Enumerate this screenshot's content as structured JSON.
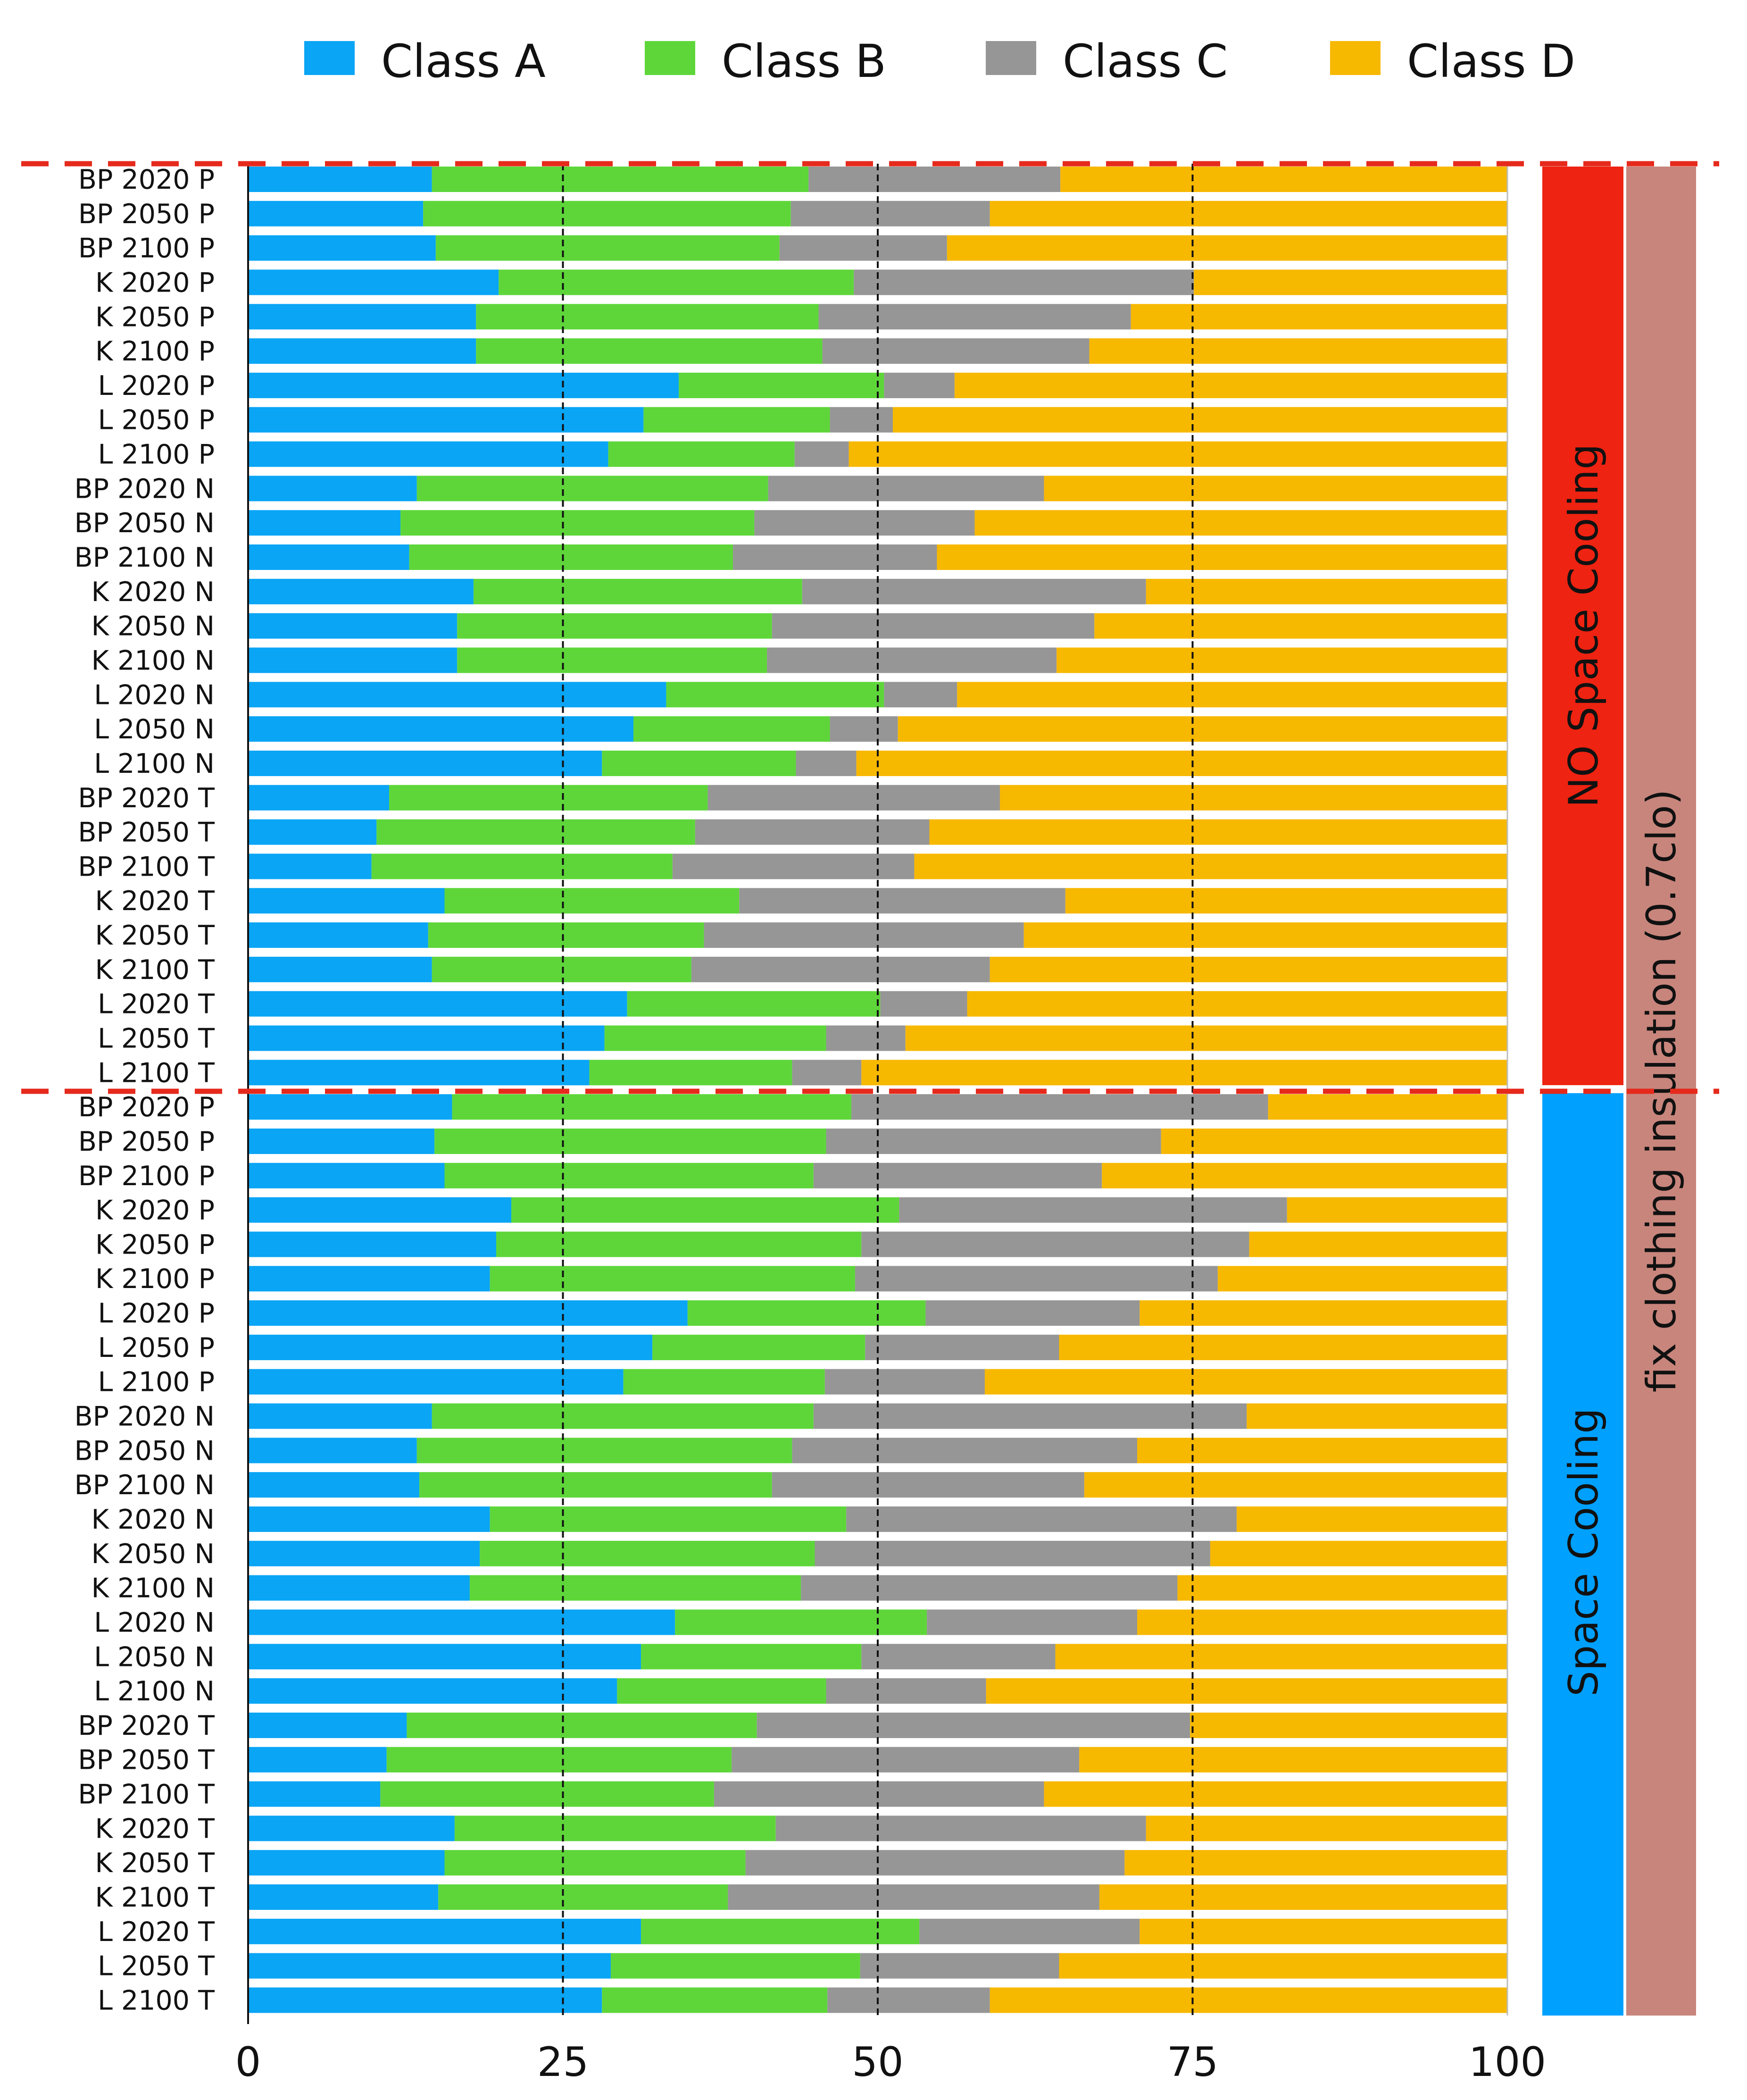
{
  "colors": {
    "class_a": "#0aa5f5",
    "class_b": "#5ed63a",
    "class_c": "#969696",
    "class_d": "#f7b800",
    "no_cooling_band": "#ee2311",
    "cooling_band": "#00a0ff",
    "clothing_band": "#c8857c",
    "dashed_line": "#e52a1c"
  },
  "group_labels": {
    "no_cooling": "NO Space Cooling",
    "cooling": "Space Cooling",
    "clothing": "fix clothing insulation (0.7clo)"
  },
  "chart_data": {
    "type": "bar",
    "orientation": "horizontal",
    "stacked": true,
    "title": "",
    "xlabel": "",
    "ylabel": "",
    "xlim": [
      0,
      100
    ],
    "xticks": [
      "0",
      "25",
      "50",
      "75",
      "100"
    ],
    "grid": "vertical dashed at 25, 50, 75",
    "legend": {
      "placement": "top",
      "entries": [
        "Class A",
        "Class B",
        "Class C",
        "Class D"
      ]
    },
    "categories": [
      "BP 2020 P",
      "BP 2050 P",
      "BP 2100 P",
      "K 2020 P",
      "K 2050 P",
      "K 2100 P",
      "L 2020 P",
      "L 2050 P",
      "L 2100 P",
      "BP 2020 N",
      "BP 2050 N",
      "BP 2100 N",
      "K 2020 N",
      "K 2050 N",
      "K 2100 N",
      "L 2020 N",
      "L 2050 N",
      "L 2100 N",
      "BP 2020 T",
      "BP 2050 T",
      "BP 2100 T",
      "K 2020 T",
      "K 2050 T",
      "K 2100 T",
      "L 2020 T",
      "L 2050 T",
      "L 2100 T",
      "BP 2020 P",
      "BP 2050 P",
      "BP 2100 P",
      "K 2020 P",
      "K 2050 P",
      "K 2100 P",
      "L 2020 P",
      "L 2050 P",
      "L 2100 P",
      "BP 2020 N",
      "BP 2050 N",
      "BP 2100 N",
      "K 2020 N",
      "K 2050 N",
      "K 2100 N",
      "L 2020 N",
      "L 2050 N",
      "L 2100 N",
      "BP 2020 T",
      "BP 2050 T",
      "BP 2100 T",
      "K 2020 T",
      "K 2050 T",
      "K 2100 T",
      "L 2020 T",
      "L 2050 T",
      "L 2100 T"
    ],
    "groups": [
      {
        "name": "NO Space Cooling",
        "rows": [
          0,
          26
        ]
      },
      {
        "name": "Space Cooling",
        "rows": [
          27,
          53
        ]
      }
    ],
    "series": [
      {
        "name": "Class A",
        "values": [
          14.6,
          13.9,
          14.9,
          19.9,
          18.1,
          18.1,
          34.2,
          31.4,
          28.6,
          13.4,
          12.1,
          12.8,
          17.9,
          16.6,
          16.6,
          33.2,
          30.6,
          28.1,
          11.2,
          10.2,
          9.8,
          15.6,
          14.3,
          14.6,
          30.1,
          28.3,
          27.1,
          16.2,
          14.8,
          15.6,
          20.9,
          19.7,
          19.2,
          34.9,
          32.1,
          29.8,
          14.6,
          13.4,
          13.6,
          19.2,
          18.4,
          17.6,
          33.9,
          31.2,
          29.3,
          12.6,
          11.0,
          10.5,
          16.4,
          15.6,
          15.1,
          31.2,
          28.8,
          28.1
        ]
      },
      {
        "name": "Class B",
        "values": [
          29.9,
          29.2,
          27.3,
          28.2,
          27.2,
          27.5,
          16.3,
          14.8,
          14.8,
          27.9,
          28.1,
          25.7,
          26.1,
          25.0,
          24.6,
          17.3,
          15.6,
          15.4,
          25.3,
          25.3,
          23.9,
          23.4,
          21.9,
          20.6,
          20.1,
          17.6,
          16.1,
          31.7,
          31.1,
          29.3,
          30.8,
          29.0,
          29.0,
          18.9,
          16.9,
          16.0,
          30.3,
          29.8,
          28.0,
          28.3,
          26.6,
          26.3,
          20.0,
          17.5,
          16.6,
          27.8,
          27.4,
          26.5,
          25.5,
          23.9,
          23.0,
          22.1,
          19.8,
          17.9
        ]
      },
      {
        "name": "Class C",
        "values": [
          20.0,
          15.8,
          13.3,
          27.0,
          24.8,
          21.2,
          5.6,
          5.0,
          4.3,
          21.9,
          17.5,
          16.2,
          27.3,
          25.6,
          23.0,
          5.8,
          5.4,
          4.8,
          23.2,
          18.6,
          19.2,
          25.9,
          25.4,
          23.7,
          6.9,
          6.3,
          5.5,
          33.1,
          26.6,
          22.9,
          30.8,
          30.8,
          28.8,
          17.0,
          15.4,
          12.7,
          34.4,
          27.4,
          24.8,
          31.0,
          31.4,
          29.9,
          16.7,
          15.4,
          12.7,
          34.4,
          27.6,
          26.2,
          29.4,
          30.1,
          29.5,
          17.5,
          15.8,
          12.9
        ]
      },
      {
        "name": "Class D",
        "values": [
          35.5,
          41.1,
          44.5,
          24.9,
          29.9,
          33.2,
          43.9,
          48.8,
          52.3,
          36.8,
          42.3,
          45.3,
          28.7,
          32.8,
          35.8,
          43.7,
          48.4,
          51.7,
          40.3,
          45.9,
          47.1,
          35.1,
          38.4,
          41.1,
          42.9,
          47.8,
          51.3,
          19.0,
          27.5,
          32.2,
          17.5,
          20.5,
          23.0,
          29.2,
          35.6,
          41.5,
          20.7,
          29.4,
          33.6,
          21.5,
          23.6,
          26.2,
          29.4,
          35.9,
          41.4,
          25.2,
          34.0,
          36.8,
          28.7,
          30.4,
          32.4,
          29.2,
          35.6,
          41.1
        ]
      }
    ]
  }
}
